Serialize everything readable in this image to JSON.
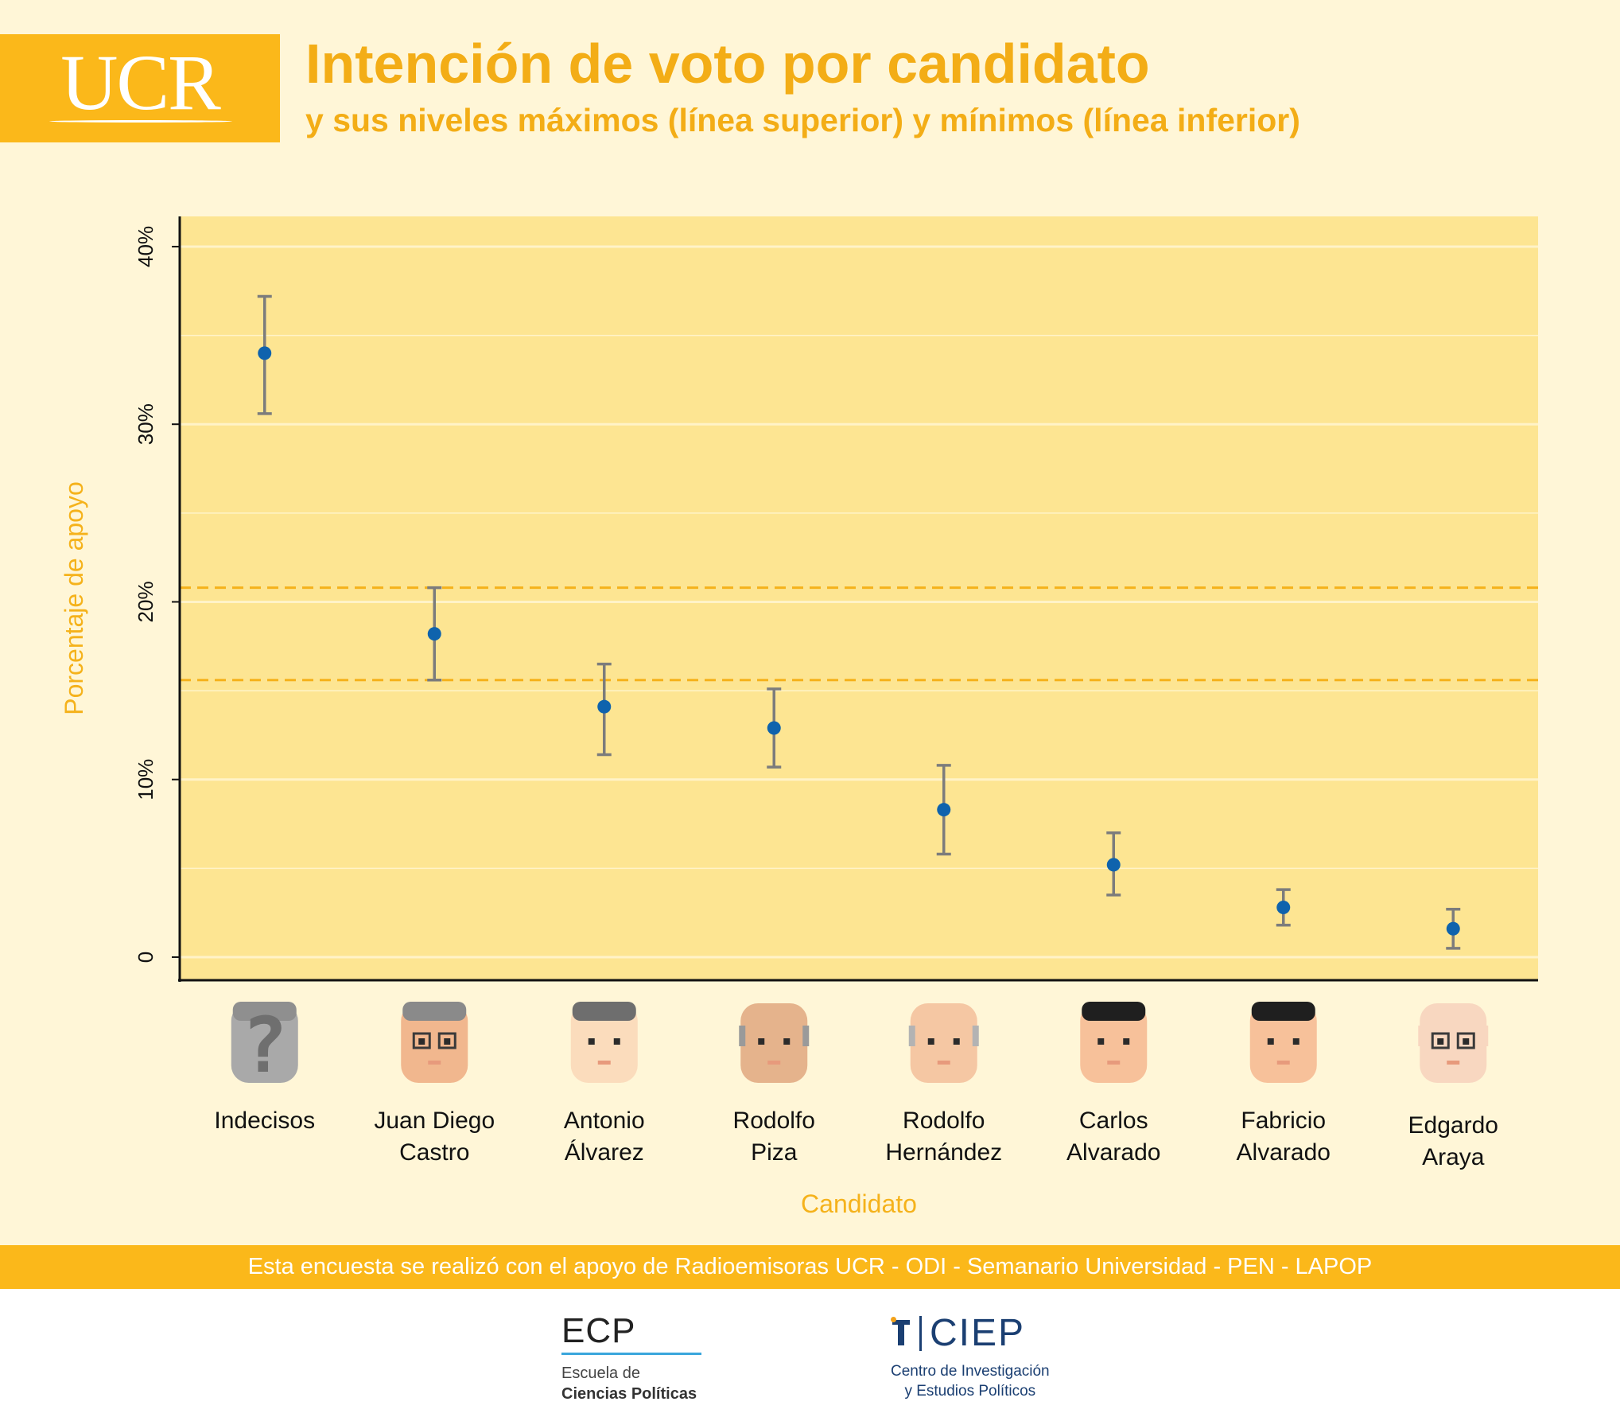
{
  "header": {
    "logo": "UCR",
    "title": "Intención de voto por candidato",
    "subtitle": "y sus niveles máximos (línea superior) y mínimos (línea inferior)"
  },
  "chart_data": {
    "type": "scatter",
    "title": "Intención de voto por candidato",
    "xlabel": "Candidato",
    "ylabel": "Porcentaje de apoyo",
    "ylim": [
      -1.3,
      41.7
    ],
    "yticks": [
      {
        "value": 0,
        "label": "0"
      },
      {
        "value": 10,
        "label": "10%"
      },
      {
        "value": 20,
        "label": "20%"
      },
      {
        "value": 30,
        "label": "30%"
      },
      {
        "value": 40,
        "label": "40%"
      }
    ],
    "grid": true,
    "categories": [
      [
        "Indecisos"
      ],
      [
        "Juan Diego",
        "Castro"
      ],
      [
        "Antonio",
        "Álvarez"
      ],
      [
        "Rodolfo",
        "Piza"
      ],
      [
        "Rodolfo",
        "Hernández"
      ],
      [
        "Carlos",
        "Alvarado"
      ],
      [
        "Fabricio",
        "Alvarado"
      ],
      [
        "Edgardo",
        "Araya"
      ]
    ],
    "values": [
      34.0,
      18.2,
      14.1,
      12.9,
      8.3,
      5.2,
      2.8,
      1.6
    ],
    "upper": [
      37.2,
      20.8,
      16.5,
      15.1,
      10.8,
      7.0,
      3.8,
      2.7
    ],
    "lower": [
      30.6,
      15.6,
      11.4,
      10.7,
      5.8,
      3.5,
      1.8,
      0.5
    ],
    "reference_lines": [
      20.8,
      15.6
    ],
    "colors": {
      "panel": "#fde592",
      "grid": "#fff3c8",
      "point": "#0f63ad",
      "errorbar": "#7c7c7c",
      "reference": "#f5b21b",
      "axis_title": "#f5b21b"
    }
  },
  "footer": {
    "support_text": "Esta encuesta se realizó con el apoyo de Radioemisoras UCR - ODI - Semanario Universidad - PEN - LAPOP"
  },
  "partners": {
    "ecp_name": "ECP",
    "ecp_line1": "Escuela de",
    "ecp_line2": "Ciencias Políticas",
    "ciep_name": "CIEP",
    "ciep_line1": "Centro de Investigación",
    "ciep_line2": "y Estudios Políticos"
  }
}
